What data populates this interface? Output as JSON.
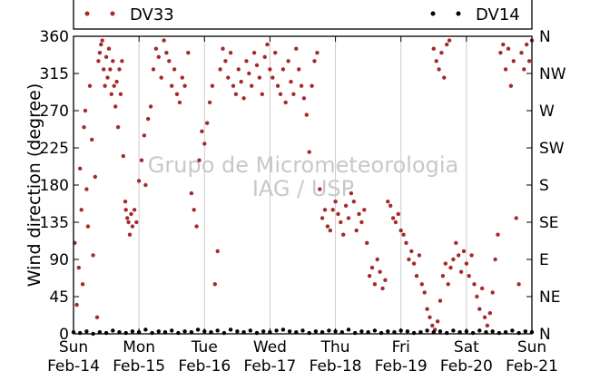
{
  "chart_data": {
    "type": "scatter",
    "ylabel": "Wind direction (degree)",
    "ylim": [
      0,
      360
    ],
    "xlim": [
      0,
      7
    ],
    "grid": "vertical",
    "legend_placement": "top",
    "watermark": [
      "Grupo de Micrometeorologia",
      "IAG / USP"
    ],
    "y_ticks": [
      "0",
      "45",
      "90",
      "135",
      "180",
      "225",
      "270",
      "315",
      "360"
    ],
    "y2_ticks": [
      "N",
      "NE",
      "E",
      "SE",
      "S",
      "SW",
      "W",
      "NW",
      "N"
    ],
    "x_ticks": [
      {
        "day": "Sun",
        "date": "Feb-14"
      },
      {
        "day": "Mon",
        "date": "Feb-15"
      },
      {
        "day": "Tue",
        "date": "Feb-16"
      },
      {
        "day": "Wed",
        "date": "Feb-17"
      },
      {
        "day": "Thu",
        "date": "Feb-18"
      },
      {
        "day": "Fri",
        "date": "Feb-19"
      },
      {
        "day": "Sat",
        "date": "Feb-20"
      },
      {
        "day": "Sun",
        "date": "Feb-21"
      }
    ],
    "series": [
      {
        "name": "DV33",
        "color": "#a52a2a",
        "points": [
          [
            0.02,
            110
          ],
          [
            0.05,
            35
          ],
          [
            0.08,
            80
          ],
          [
            0.1,
            200
          ],
          [
            0.12,
            150
          ],
          [
            0.14,
            60
          ],
          [
            0.16,
            250
          ],
          [
            0.18,
            270
          ],
          [
            0.2,
            175
          ],
          [
            0.22,
            130
          ],
          [
            0.25,
            300
          ],
          [
            0.28,
            235
          ],
          [
            0.3,
            95
          ],
          [
            0.33,
            190
          ],
          [
            0.36,
            20
          ],
          [
            0.38,
            330
          ],
          [
            0.4,
            340
          ],
          [
            0.42,
            350
          ],
          [
            0.44,
            355
          ],
          [
            0.46,
            320
          ],
          [
            0.48,
            300
          ],
          [
            0.5,
            335
          ],
          [
            0.52,
            310
          ],
          [
            0.54,
            345
          ],
          [
            0.56,
            320
          ],
          [
            0.58,
            290
          ],
          [
            0.6,
            330
          ],
          [
            0.62,
            300
          ],
          [
            0.64,
            275
          ],
          [
            0.66,
            305
          ],
          [
            0.68,
            250
          ],
          [
            0.7,
            320
          ],
          [
            0.72,
            290
          ],
          [
            0.74,
            330
          ],
          [
            0.76,
            215
          ],
          [
            0.79,
            160
          ],
          [
            0.8,
            150
          ],
          [
            0.82,
            140
          ],
          [
            0.84,
            135
          ],
          [
            0.86,
            120
          ],
          [
            0.88,
            145
          ],
          [
            0.9,
            130
          ],
          [
            0.93,
            150
          ],
          [
            0.96,
            135
          ],
          [
            1.0,
            185
          ],
          [
            1.04,
            210
          ],
          [
            1.08,
            240
          ],
          [
            1.1,
            180
          ],
          [
            1.14,
            260
          ],
          [
            1.18,
            275
          ],
          [
            1.22,
            320
          ],
          [
            1.26,
            345
          ],
          [
            1.3,
            335
          ],
          [
            1.34,
            310
          ],
          [
            1.38,
            355
          ],
          [
            1.42,
            340
          ],
          [
            1.46,
            330
          ],
          [
            1.5,
            300
          ],
          [
            1.54,
            320
          ],
          [
            1.58,
            290
          ],
          [
            1.62,
            280
          ],
          [
            1.66,
            310
          ],
          [
            1.7,
            300
          ],
          [
            1.75,
            340
          ],
          [
            1.8,
            170
          ],
          [
            1.84,
            150
          ],
          [
            1.88,
            130
          ],
          [
            1.92,
            210
          ],
          [
            1.96,
            245
          ],
          [
            2.0,
            230
          ],
          [
            2.04,
            255
          ],
          [
            2.08,
            280
          ],
          [
            2.12,
            300
          ],
          [
            2.16,
            60
          ],
          [
            2.2,
            100
          ],
          [
            2.24,
            320
          ],
          [
            2.28,
            345
          ],
          [
            2.32,
            330
          ],
          [
            2.36,
            310
          ],
          [
            2.4,
            340
          ],
          [
            2.44,
            300
          ],
          [
            2.48,
            290
          ],
          [
            2.52,
            320
          ],
          [
            2.56,
            305
          ],
          [
            2.6,
            285
          ],
          [
            2.64,
            330
          ],
          [
            2.68,
            315
          ],
          [
            2.72,
            300
          ],
          [
            2.76,
            340
          ],
          [
            2.8,
            325
          ],
          [
            2.84,
            310
          ],
          [
            2.88,
            290
          ],
          [
            2.92,
            335
          ],
          [
            2.96,
            350
          ],
          [
            3.0,
            320
          ],
          [
            3.04,
            310
          ],
          [
            3.08,
            340
          ],
          [
            3.12,
            300
          ],
          [
            3.16,
            290
          ],
          [
            3.2,
            320
          ],
          [
            3.24,
            280
          ],
          [
            3.28,
            330
          ],
          [
            3.32,
            305
          ],
          [
            3.36,
            290
          ],
          [
            3.4,
            345
          ],
          [
            3.44,
            320
          ],
          [
            3.48,
            300
          ],
          [
            3.52,
            285
          ],
          [
            3.56,
            265
          ],
          [
            3.6,
            220
          ],
          [
            3.64,
            300
          ],
          [
            3.68,
            330
          ],
          [
            3.72,
            340
          ],
          [
            3.76,
            175
          ],
          [
            3.8,
            140
          ],
          [
            3.84,
            150
          ],
          [
            3.88,
            130
          ],
          [
            3.92,
            125
          ],
          [
            3.96,
            150
          ],
          [
            4.0,
            160
          ],
          [
            4.04,
            145
          ],
          [
            4.08,
            135
          ],
          [
            4.12,
            120
          ],
          [
            4.16,
            155
          ],
          [
            4.2,
            140
          ],
          [
            4.24,
            170
          ],
          [
            4.28,
            160
          ],
          [
            4.32,
            125
          ],
          [
            4.36,
            145
          ],
          [
            4.4,
            135
          ],
          [
            4.44,
            150
          ],
          [
            4.48,
            110
          ],
          [
            4.52,
            70
          ],
          [
            4.56,
            80
          ],
          [
            4.6,
            60
          ],
          [
            4.64,
            90
          ],
          [
            4.68,
            75
          ],
          [
            4.72,
            55
          ],
          [
            4.76,
            65
          ],
          [
            4.8,
            160
          ],
          [
            4.84,
            155
          ],
          [
            4.88,
            140
          ],
          [
            4.92,
            135
          ],
          [
            4.96,
            145
          ],
          [
            5.0,
            125
          ],
          [
            5.04,
            120
          ],
          [
            5.08,
            110
          ],
          [
            5.12,
            90
          ],
          [
            5.16,
            100
          ],
          [
            5.2,
            85
          ],
          [
            5.24,
            70
          ],
          [
            5.28,
            95
          ],
          [
            5.32,
            60
          ],
          [
            5.36,
            50
          ],
          [
            5.4,
            30
          ],
          [
            5.44,
            20
          ],
          [
            5.48,
            10
          ],
          [
            5.52,
            5
          ],
          [
            5.56,
            15
          ],
          [
            5.6,
            40
          ],
          [
            5.64,
            70
          ],
          [
            5.68,
            85
          ],
          [
            5.72,
            60
          ],
          [
            5.76,
            80
          ],
          [
            5.8,
            90
          ],
          [
            5.84,
            110
          ],
          [
            5.88,
            95
          ],
          [
            5.92,
            75
          ],
          [
            5.96,
            100
          ],
          [
            6.0,
            85
          ],
          [
            6.04,
            70
          ],
          [
            6.08,
            95
          ],
          [
            6.12,
            60
          ],
          [
            6.16,
            45
          ],
          [
            6.2,
            30
          ],
          [
            6.24,
            55
          ],
          [
            6.28,
            20
          ],
          [
            6.32,
            10
          ],
          [
            6.36,
            25
          ],
          [
            6.4,
            50
          ],
          [
            6.44,
            90
          ],
          [
            6.48,
            120
          ],
          [
            6.52,
            340
          ],
          [
            6.56,
            350
          ],
          [
            6.6,
            320
          ],
          [
            6.64,
            345
          ],
          [
            6.68,
            300
          ],
          [
            6.72,
            330
          ],
          [
            6.76,
            140
          ],
          [
            6.8,
            60
          ],
          [
            6.84,
            340
          ],
          [
            6.88,
            320
          ],
          [
            6.92,
            350
          ],
          [
            6.96,
            330
          ],
          [
            7.0,
            355
          ],
          [
            5.5,
            345
          ],
          [
            5.54,
            330
          ],
          [
            5.58,
            320
          ],
          [
            5.62,
            340
          ],
          [
            5.66,
            310
          ],
          [
            5.7,
            350
          ],
          [
            5.74,
            355
          ]
        ]
      },
      {
        "name": "DV14",
        "color": "#000000",
        "points": [
          [
            0.0,
            2
          ],
          [
            0.1,
            1
          ],
          [
            0.2,
            3
          ],
          [
            0.3,
            0
          ],
          [
            0.4,
            2
          ],
          [
            0.5,
            1
          ],
          [
            0.6,
            4
          ],
          [
            0.7,
            2
          ],
          [
            0.8,
            1
          ],
          [
            0.9,
            3
          ],
          [
            1.0,
            2
          ],
          [
            1.1,
            5
          ],
          [
            1.2,
            1
          ],
          [
            1.3,
            3
          ],
          [
            1.4,
            2
          ],
          [
            1.5,
            4
          ],
          [
            1.6,
            1
          ],
          [
            1.7,
            3
          ],
          [
            1.8,
            2
          ],
          [
            1.9,
            5
          ],
          [
            2.0,
            3
          ],
          [
            2.1,
            2
          ],
          [
            2.2,
            4
          ],
          [
            2.3,
            1
          ],
          [
            2.4,
            5
          ],
          [
            2.5,
            3
          ],
          [
            2.6,
            2
          ],
          [
            2.7,
            4
          ],
          [
            2.8,
            1
          ],
          [
            2.9,
            3
          ],
          [
            3.0,
            2
          ],
          [
            3.1,
            4
          ],
          [
            3.2,
            5
          ],
          [
            3.3,
            3
          ],
          [
            3.4,
            2
          ],
          [
            3.5,
            4
          ],
          [
            3.6,
            1
          ],
          [
            3.7,
            3
          ],
          [
            3.8,
            2
          ],
          [
            3.9,
            4
          ],
          [
            4.0,
            3
          ],
          [
            4.1,
            2
          ],
          [
            4.2,
            5
          ],
          [
            4.3,
            1
          ],
          [
            4.4,
            3
          ],
          [
            4.5,
            2
          ],
          [
            4.6,
            4
          ],
          [
            4.7,
            1
          ],
          [
            4.8,
            3
          ],
          [
            4.9,
            2
          ],
          [
            5.0,
            4
          ],
          [
            5.1,
            3
          ],
          [
            5.2,
            1
          ],
          [
            5.3,
            2
          ],
          [
            5.4,
            4
          ],
          [
            5.5,
            2
          ],
          [
            5.6,
            3
          ],
          [
            5.7,
            1
          ],
          [
            5.8,
            4
          ],
          [
            5.9,
            2
          ],
          [
            6.0,
            3
          ],
          [
            6.1,
            1
          ],
          [
            6.2,
            4
          ],
          [
            6.3,
            2
          ],
          [
            6.4,
            3
          ],
          [
            6.5,
            1
          ],
          [
            6.6,
            2
          ],
          [
            6.7,
            4
          ],
          [
            6.8,
            1
          ],
          [
            6.9,
            3
          ],
          [
            7.0,
            2
          ]
        ]
      }
    ]
  }
}
